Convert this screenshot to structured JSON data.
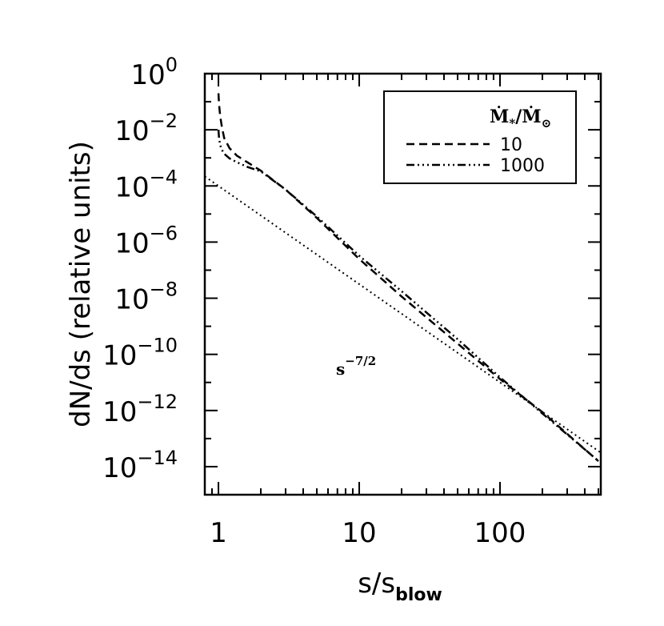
{
  "chart_data": {
    "type": "line",
    "xlabel": "s/s",
    "xlabel_sub": "blow",
    "ylabel": "dN/ds (relative units)",
    "x_scale": "log",
    "y_scale": "log",
    "xlim": [
      0.8,
      520
    ],
    "ylim": [
      1e-15,
      1
    ],
    "x_ticks": [
      {
        "value": 1,
        "label": "1"
      },
      {
        "value": 10,
        "label": "10"
      },
      {
        "value": 100,
        "label": "100"
      }
    ],
    "y_ticks": [
      {
        "value": 1,
        "base": "10",
        "exp": "0"
      },
      {
        "value": 0.01,
        "base": "10",
        "exp": "−2"
      },
      {
        "value": 0.0001,
        "base": "10",
        "exp": "−4"
      },
      {
        "value": 1e-06,
        "base": "10",
        "exp": "−6"
      },
      {
        "value": 1e-08,
        "base": "10",
        "exp": "−8"
      },
      {
        "value": 1e-10,
        "base": "10",
        "exp": "−10"
      },
      {
        "value": 1e-12,
        "base": "10",
        "exp": "−12"
      },
      {
        "value": 1e-14,
        "base": "10",
        "exp": "−14"
      }
    ],
    "legend": {
      "title_main": "Ṁ",
      "title_sub1": "*",
      "title_sep": "/Ṁ",
      "title_sub2": "⊙",
      "placement": "top-right",
      "entries": [
        {
          "label": "10",
          "dash": "dashed"
        },
        {
          "label": "1000",
          "dash": "dash-dot-dot-dot"
        }
      ]
    },
    "annotation": {
      "base": "s",
      "exp": "−7/2"
    },
    "series": [
      {
        "name": "10",
        "style": "dashed",
        "x": [
          1.0,
          1.01,
          1.03,
          1.06,
          1.1,
          1.2,
          1.35,
          1.6,
          2,
          3,
          5,
          10,
          20,
          50,
          100,
          200,
          500
        ],
        "y": [
          0.2,
          0.08,
          0.03,
          0.012,
          0.005,
          0.0022,
          0.0012,
          0.0007,
          0.00035,
          7.43e-05,
          7.2e-06,
          2.5e-07,
          1.15e-08,
          2.42e-10,
          1.32e-11,
          8.7e-13,
          1.57e-14
        ]
      },
      {
        "name": "1000",
        "style": "dash-dot-dot-dot",
        "x": [
          1.0,
          1.01,
          1.03,
          1.06,
          1.1,
          1.2,
          1.35,
          1.6,
          2,
          3,
          5,
          10,
          20,
          50,
          100,
          200,
          500
        ],
        "y": [
          0.01,
          0.005,
          0.0028,
          0.0019,
          0.0014,
          0.00095,
          0.0007,
          0.00048,
          0.00033,
          7.43e-05,
          8.1e-06,
          3.25e-07,
          1.77e-08,
          3.48e-10,
          1.52e-11,
          7.8e-13,
          1.6e-14
        ]
      },
      {
        "name": "s^-7/2",
        "style": "dotted",
        "x": [
          0.8,
          520
        ],
        "y": [
          0.000218,
          3.15e-14
        ]
      }
    ]
  }
}
